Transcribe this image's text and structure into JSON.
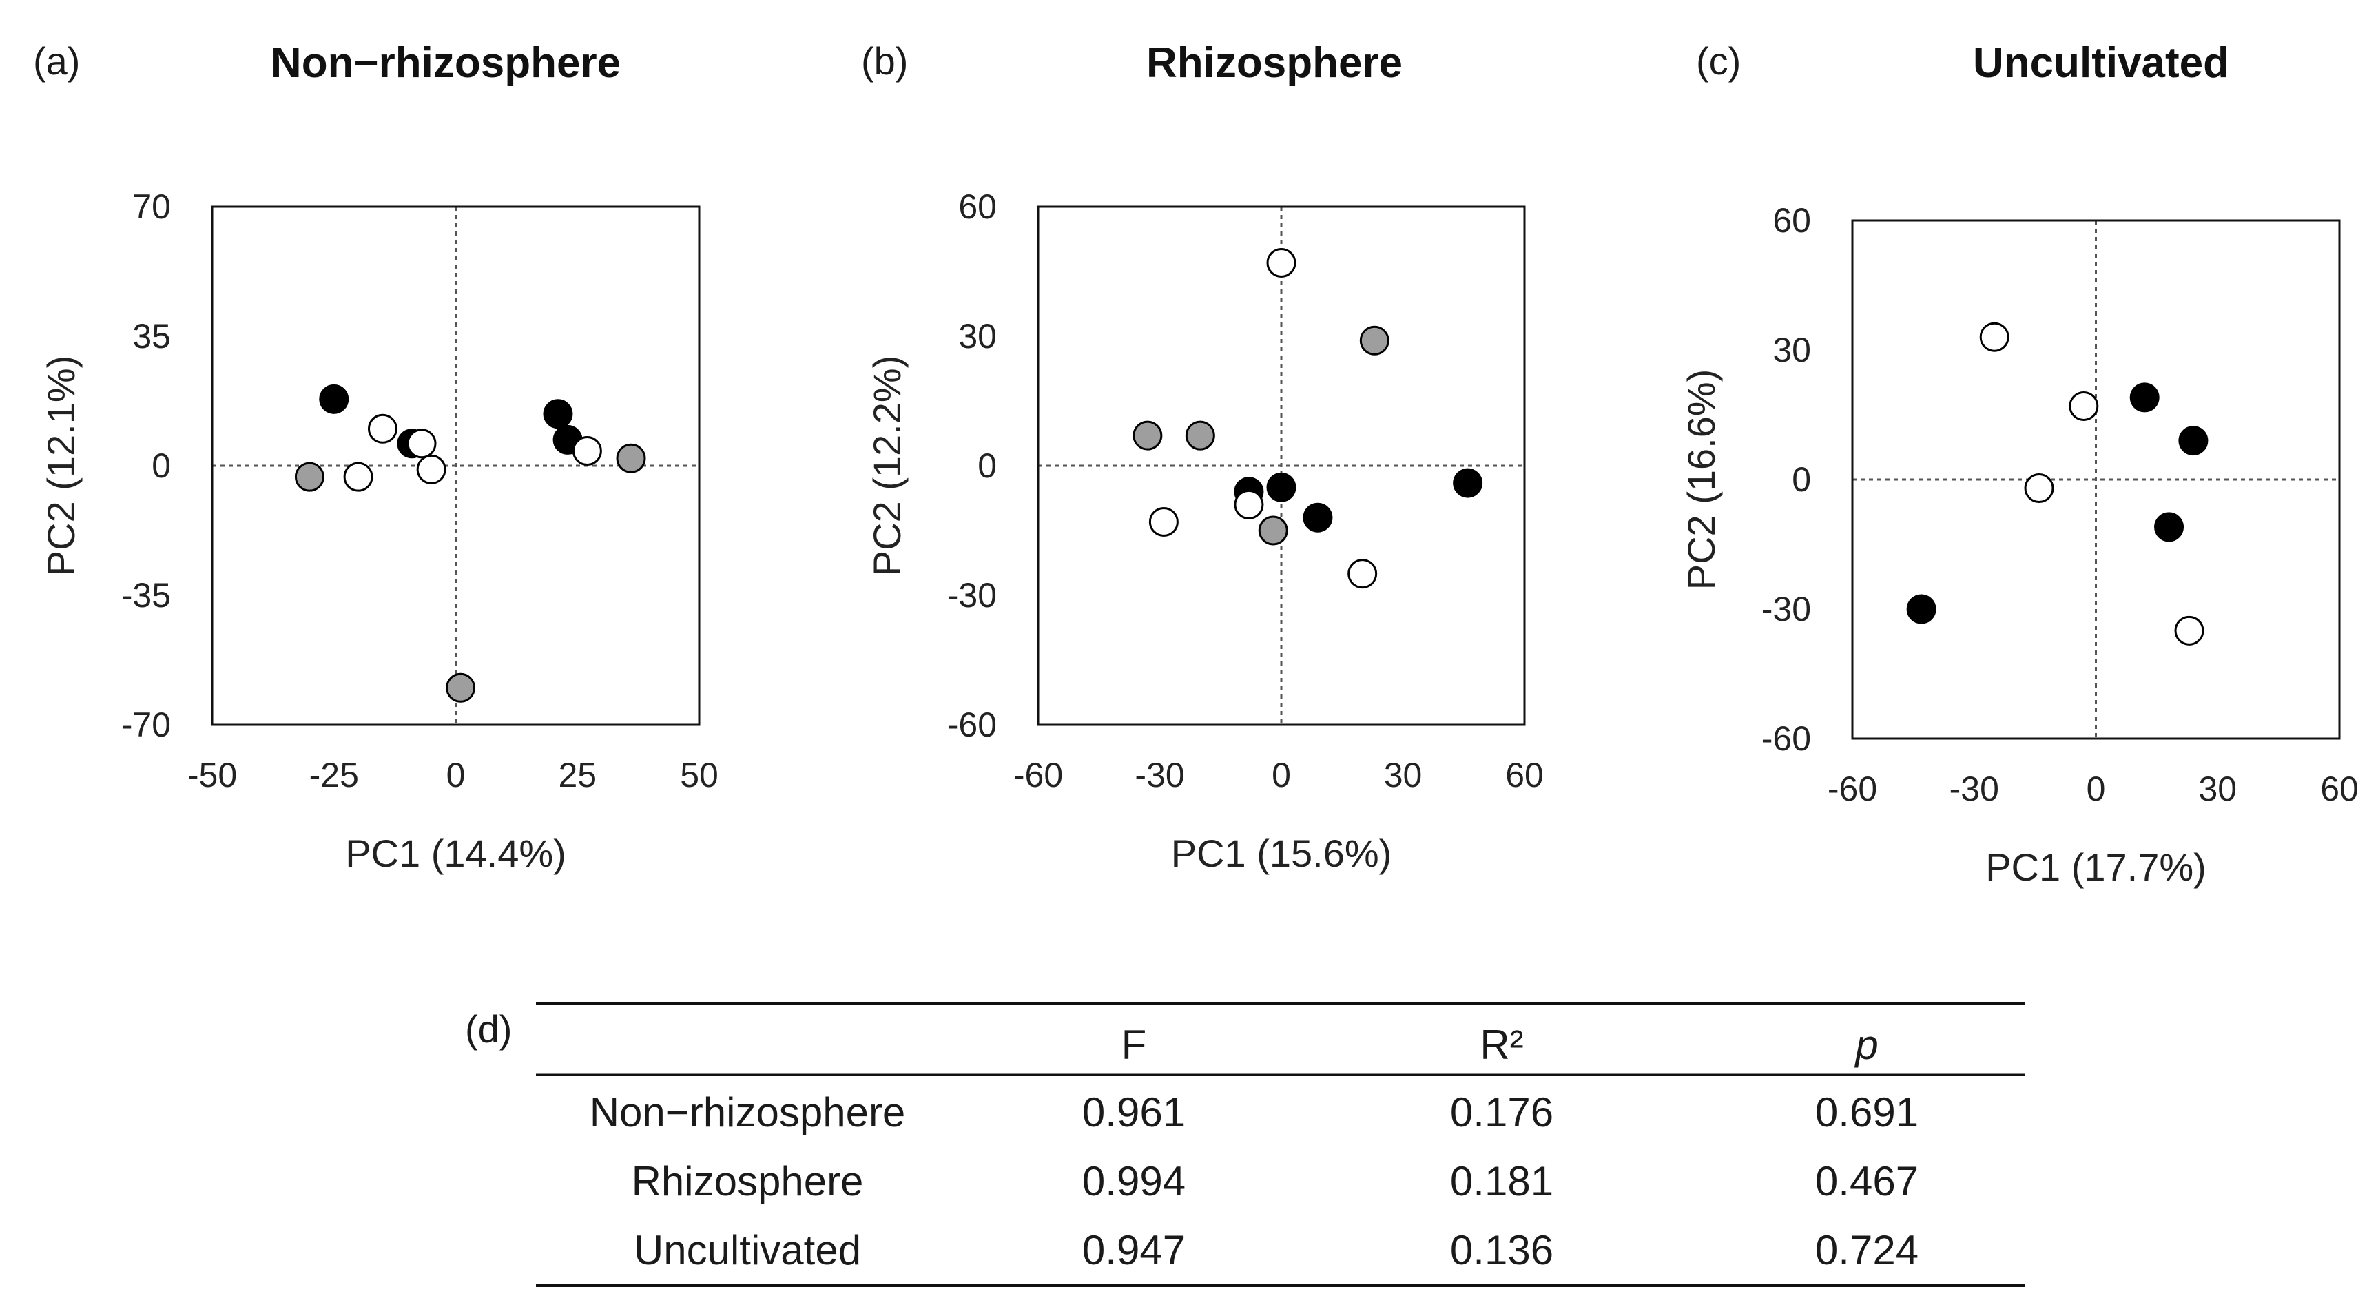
{
  "chart_data": [
    {
      "type": "scatter",
      "panel": "(a)",
      "title": "Non−rhizosphere",
      "xlabel": "PC1 (14.4%)",
      "ylabel": "PC2 (12.1%)",
      "xlim": [
        -50,
        50
      ],
      "ylim": [
        -70,
        70
      ],
      "xticks": [
        -50,
        -25,
        0,
        25,
        50
      ],
      "yticks": [
        -70,
        -35,
        0,
        35,
        70
      ],
      "xtick_labels": [
        "-50",
        "-25",
        "0",
        "25",
        "50"
      ],
      "ytick_labels": [
        "-70",
        "-35",
        "0",
        "35",
        "70"
      ],
      "zero_lines": true,
      "series": [
        {
          "fill": "#000000",
          "points": [
            [
              -25,
              18
            ],
            [
              -9,
              6
            ],
            [
              21,
              14
            ],
            [
              23,
              7
            ]
          ]
        },
        {
          "fill": "#9e9e9e",
          "points": [
            [
              -30,
              -3
            ],
            [
              36,
              2
            ],
            [
              1,
              -60
            ]
          ]
        },
        {
          "fill": "#ffffff",
          "points": [
            [
              -15,
              10
            ],
            [
              -20,
              -3
            ],
            [
              -7,
              6
            ],
            [
              -5,
              -1
            ],
            [
              27,
              4
            ]
          ]
        }
      ]
    },
    {
      "type": "scatter",
      "panel": "(b)",
      "title": "Rhizosphere",
      "xlabel": "PC1 (15.6%)",
      "ylabel": "PC2 (12.2%)",
      "xlim": [
        -60,
        60
      ],
      "ylim": [
        -60,
        60
      ],
      "xticks": [
        -60,
        -30,
        0,
        30,
        60
      ],
      "yticks": [
        -60,
        -30,
        0,
        30,
        60
      ],
      "xtick_labels": [
        "-60",
        "-30",
        "0",
        "30",
        "60"
      ],
      "ytick_labels": [
        "-60",
        "-30",
        "0",
        "30",
        "60"
      ],
      "zero_lines": true,
      "series": [
        {
          "fill": "#000000",
          "points": [
            [
              -8,
              -6
            ],
            [
              0,
              -5
            ],
            [
              9,
              -12
            ],
            [
              46,
              -4
            ]
          ]
        },
        {
          "fill": "#9e9e9e",
          "points": [
            [
              -33,
              7
            ],
            [
              -20,
              7
            ],
            [
              -2,
              -15
            ],
            [
              23,
              29
            ]
          ]
        },
        {
          "fill": "#ffffff",
          "points": [
            [
              0,
              47
            ],
            [
              -29,
              -13
            ],
            [
              -8,
              -9
            ],
            [
              20,
              -25
            ]
          ]
        }
      ]
    },
    {
      "type": "scatter",
      "panel": "(c)",
      "title": "Uncultivated",
      "xlabel": "PC1 (17.7%)",
      "ylabel": "PC2 (16.6%)",
      "xlim": [
        -60,
        60
      ],
      "ylim": [
        -60,
        60
      ],
      "xticks": [
        -60,
        -30,
        0,
        30,
        60
      ],
      "yticks": [
        -60,
        -30,
        0,
        30,
        60
      ],
      "xtick_labels": [
        "-60",
        "-30",
        "0",
        "30",
        "60"
      ],
      "ytick_labels": [
        "-60",
        "-30",
        "0",
        "30",
        "60"
      ],
      "zero_lines": true,
      "series": [
        {
          "fill": "#000000",
          "points": [
            [
              12,
              19
            ],
            [
              24,
              9
            ],
            [
              18,
              -11
            ],
            [
              -43,
              -30
            ]
          ]
        },
        {
          "fill": "#ffffff",
          "points": [
            [
              -25,
              33
            ],
            [
              -3,
              17
            ],
            [
              -14,
              -2
            ],
            [
              23,
              -35
            ]
          ]
        }
      ]
    },
    {
      "type": "table",
      "panel": "(d)",
      "columns": [
        "",
        "F",
        "R²",
        "p"
      ],
      "rows": [
        [
          "Non−rhizosphere",
          "0.961",
          "0.176",
          "0.691"
        ],
        [
          "Rhizosphere",
          "0.994",
          "0.181",
          "0.467"
        ],
        [
          "Uncultivated",
          "0.947",
          "0.136",
          "0.724"
        ]
      ]
    }
  ]
}
